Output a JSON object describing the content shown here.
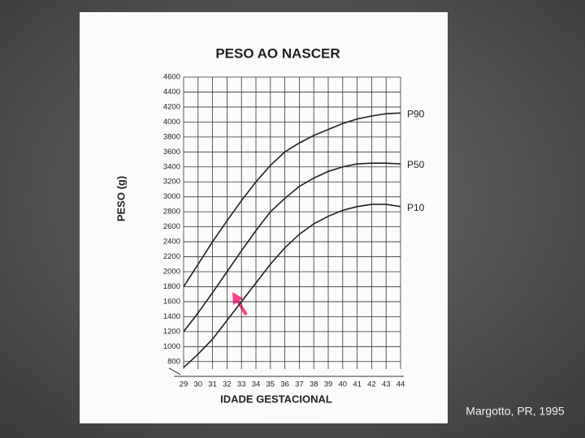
{
  "chart_data": {
    "type": "line",
    "title": "PESO AO NASCER",
    "y_label": "PESO (g)",
    "x_label": "IDADE GESTACIONAL",
    "credit": "Margotto, PR, 1995",
    "x": [
      29,
      30,
      31,
      32,
      33,
      34,
      35,
      36,
      37,
      38,
      39,
      40,
      41,
      42,
      43,
      44
    ],
    "series": [
      {
        "name": "P90",
        "color": "#222222",
        "values": [
          1800,
          2100,
          2400,
          2680,
          2950,
          3200,
          3420,
          3600,
          3720,
          3820,
          3900,
          3980,
          4040,
          4080,
          4110,
          4120
        ]
      },
      {
        "name": "P50",
        "color": "#222222",
        "values": [
          1200,
          1450,
          1720,
          2000,
          2280,
          2550,
          2800,
          2980,
          3140,
          3250,
          3340,
          3400,
          3440,
          3450,
          3450,
          3440
        ]
      },
      {
        "name": "P10",
        "color": "#222222",
        "values": [
          720,
          900,
          1100,
          1350,
          1600,
          1850,
          2100,
          2320,
          2500,
          2640,
          2740,
          2820,
          2870,
          2900,
          2900,
          2870
        ]
      }
    ],
    "xlim": [
      29,
      44
    ],
    "xticks": [
      29,
      30,
      31,
      32,
      33,
      34,
      35,
      36,
      37,
      38,
      39,
      40,
      41,
      42,
      43,
      44
    ],
    "ylim": [
      700,
      4600
    ],
    "yticks": [
      800,
      1000,
      1200,
      1400,
      1600,
      1800,
      2000,
      2200,
      2400,
      2600,
      2800,
      3000,
      3200,
      3400,
      3600,
      3800,
      4000,
      4200,
      4400,
      4600
    ],
    "grid": true
  }
}
